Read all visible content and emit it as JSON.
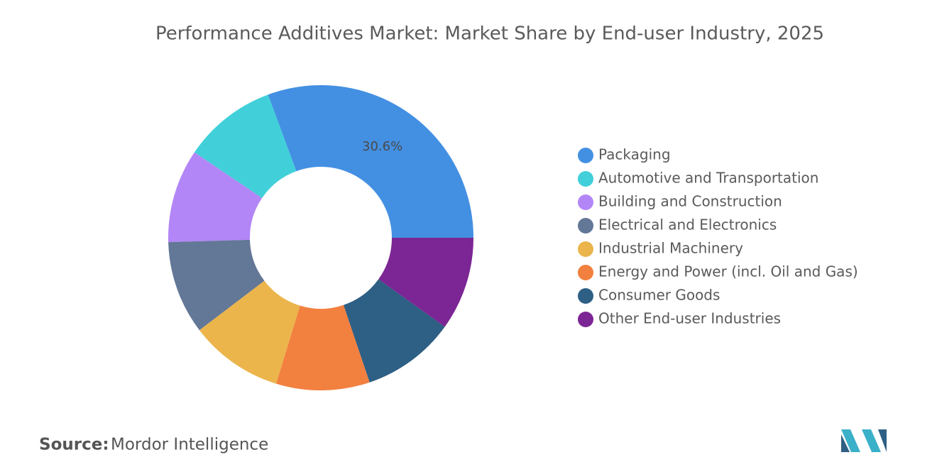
{
  "chart_data": {
    "type": "donut",
    "title": "Performance Additives Market: Market Share by End-user Industry, 2025",
    "categories": [
      "Packaging",
      "Automotive and Transportation",
      "Building and Construction",
      "Electrical and Electronics",
      "Industrial Machinery",
      "Energy and Power (incl. Oil and Gas)",
      "Consumer Goods",
      "Other End-user Industries"
    ],
    "values": [
      30.6,
      9.9,
      9.9,
      9.9,
      9.9,
      9.9,
      9.9,
      9.9
    ],
    "value_labels": [
      "30.6%",
      null,
      null,
      null,
      null,
      null,
      null,
      null
    ],
    "colors": [
      "#4390e3",
      "#41d0d9",
      "#b286f6",
      "#637797",
      "#ebb54c",
      "#f2803f",
      "#2e5f84",
      "#7c2594"
    ],
    "legend": "right"
  },
  "source": {
    "label": "Source:",
    "text": "Mordor Intelligence"
  }
}
